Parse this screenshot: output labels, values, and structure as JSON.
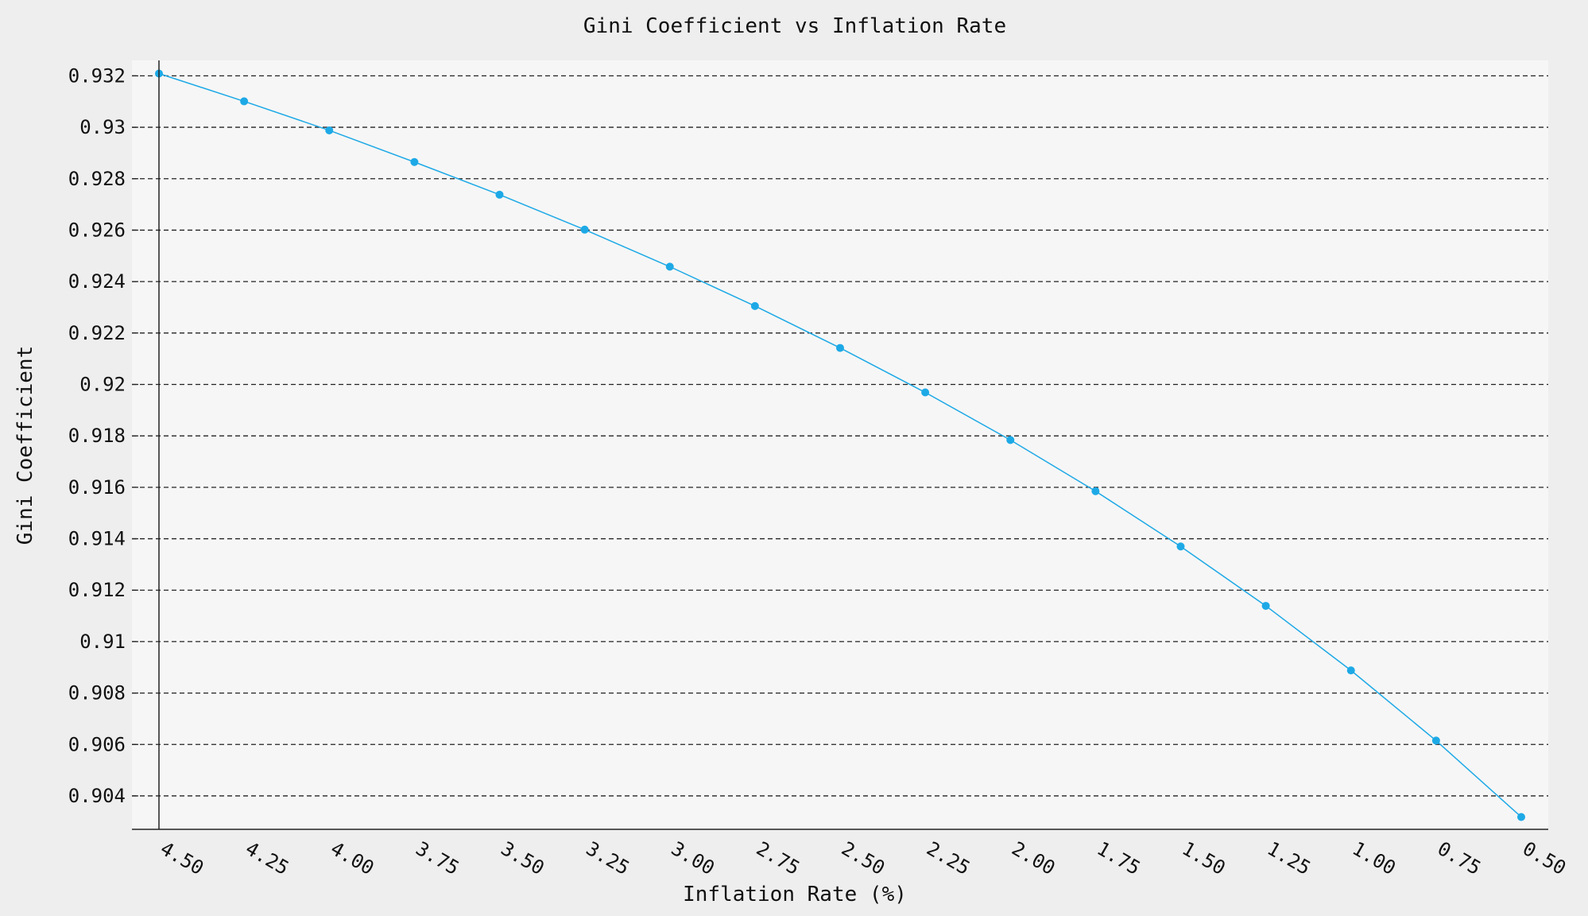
{
  "chart_data": {
    "type": "line",
    "title": "Gini Coefficient vs Inflation Rate",
    "xlabel": "Inflation Rate (%)",
    "ylabel": "Gini Coefficient",
    "x_inverted": true,
    "xlim": [
      4.5,
      0.5
    ],
    "ylim": [
      0.9027,
      0.9326
    ],
    "x_ticks": [
      "4.50",
      "4.25",
      "4.00",
      "3.75",
      "3.50",
      "3.25",
      "3.00",
      "2.75",
      "2.50",
      "2.25",
      "2.00",
      "1.75",
      "1.50",
      "1.25",
      "1.00",
      "0.75",
      "0.50"
    ],
    "y_ticks": [
      "0.932",
      "0.93",
      "0.928",
      "0.926",
      "0.924",
      "0.922",
      "0.92",
      "0.918",
      "0.916",
      "0.914",
      "0.912",
      "0.91",
      "0.908",
      "0.906",
      "0.904"
    ],
    "grid": "horizontal dashed",
    "series": [
      {
        "color": "#1da9e6",
        "x": [
          4.5,
          4.25,
          4.0,
          3.75,
          3.5,
          3.25,
          3.0,
          2.75,
          2.5,
          2.25,
          2.0,
          1.75,
          1.5,
          1.25,
          1.0,
          0.75,
          0.5
        ],
        "y": [
          0.93209,
          0.93101,
          0.92988,
          0.92865,
          0.92738,
          0.92602,
          0.92458,
          0.92305,
          0.92142,
          0.91969,
          0.91784,
          0.91585,
          0.9137,
          0.91139,
          0.90888,
          0.90615,
          0.90318
        ]
      }
    ]
  }
}
